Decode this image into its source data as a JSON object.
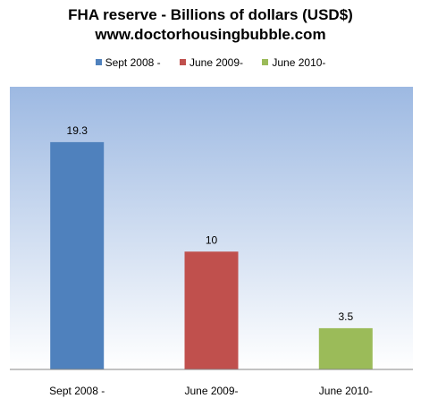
{
  "chart_data": {
    "type": "bar",
    "title": "FHA reserve - Billions of dollars (USD$)",
    "subtitle": "www.doctorhousingbubble.com",
    "categories": [
      "Sept 2008 -",
      "June 2009-",
      "June 2010-"
    ],
    "values": [
      19.3,
      10,
      3.5
    ],
    "data_labels": [
      "19.3",
      "10",
      "3.5"
    ],
    "colors": [
      "#4f81bd",
      "#c0504d",
      "#9bbb59"
    ],
    "legend": [
      "Sept 2008 -",
      "June 2009-",
      "June 2010-"
    ],
    "legend_position": "top",
    "ylim": [
      0,
      24
    ],
    "grid": false,
    "background_gradient": [
      "#9db9e2",
      "#ffffff"
    ]
  }
}
